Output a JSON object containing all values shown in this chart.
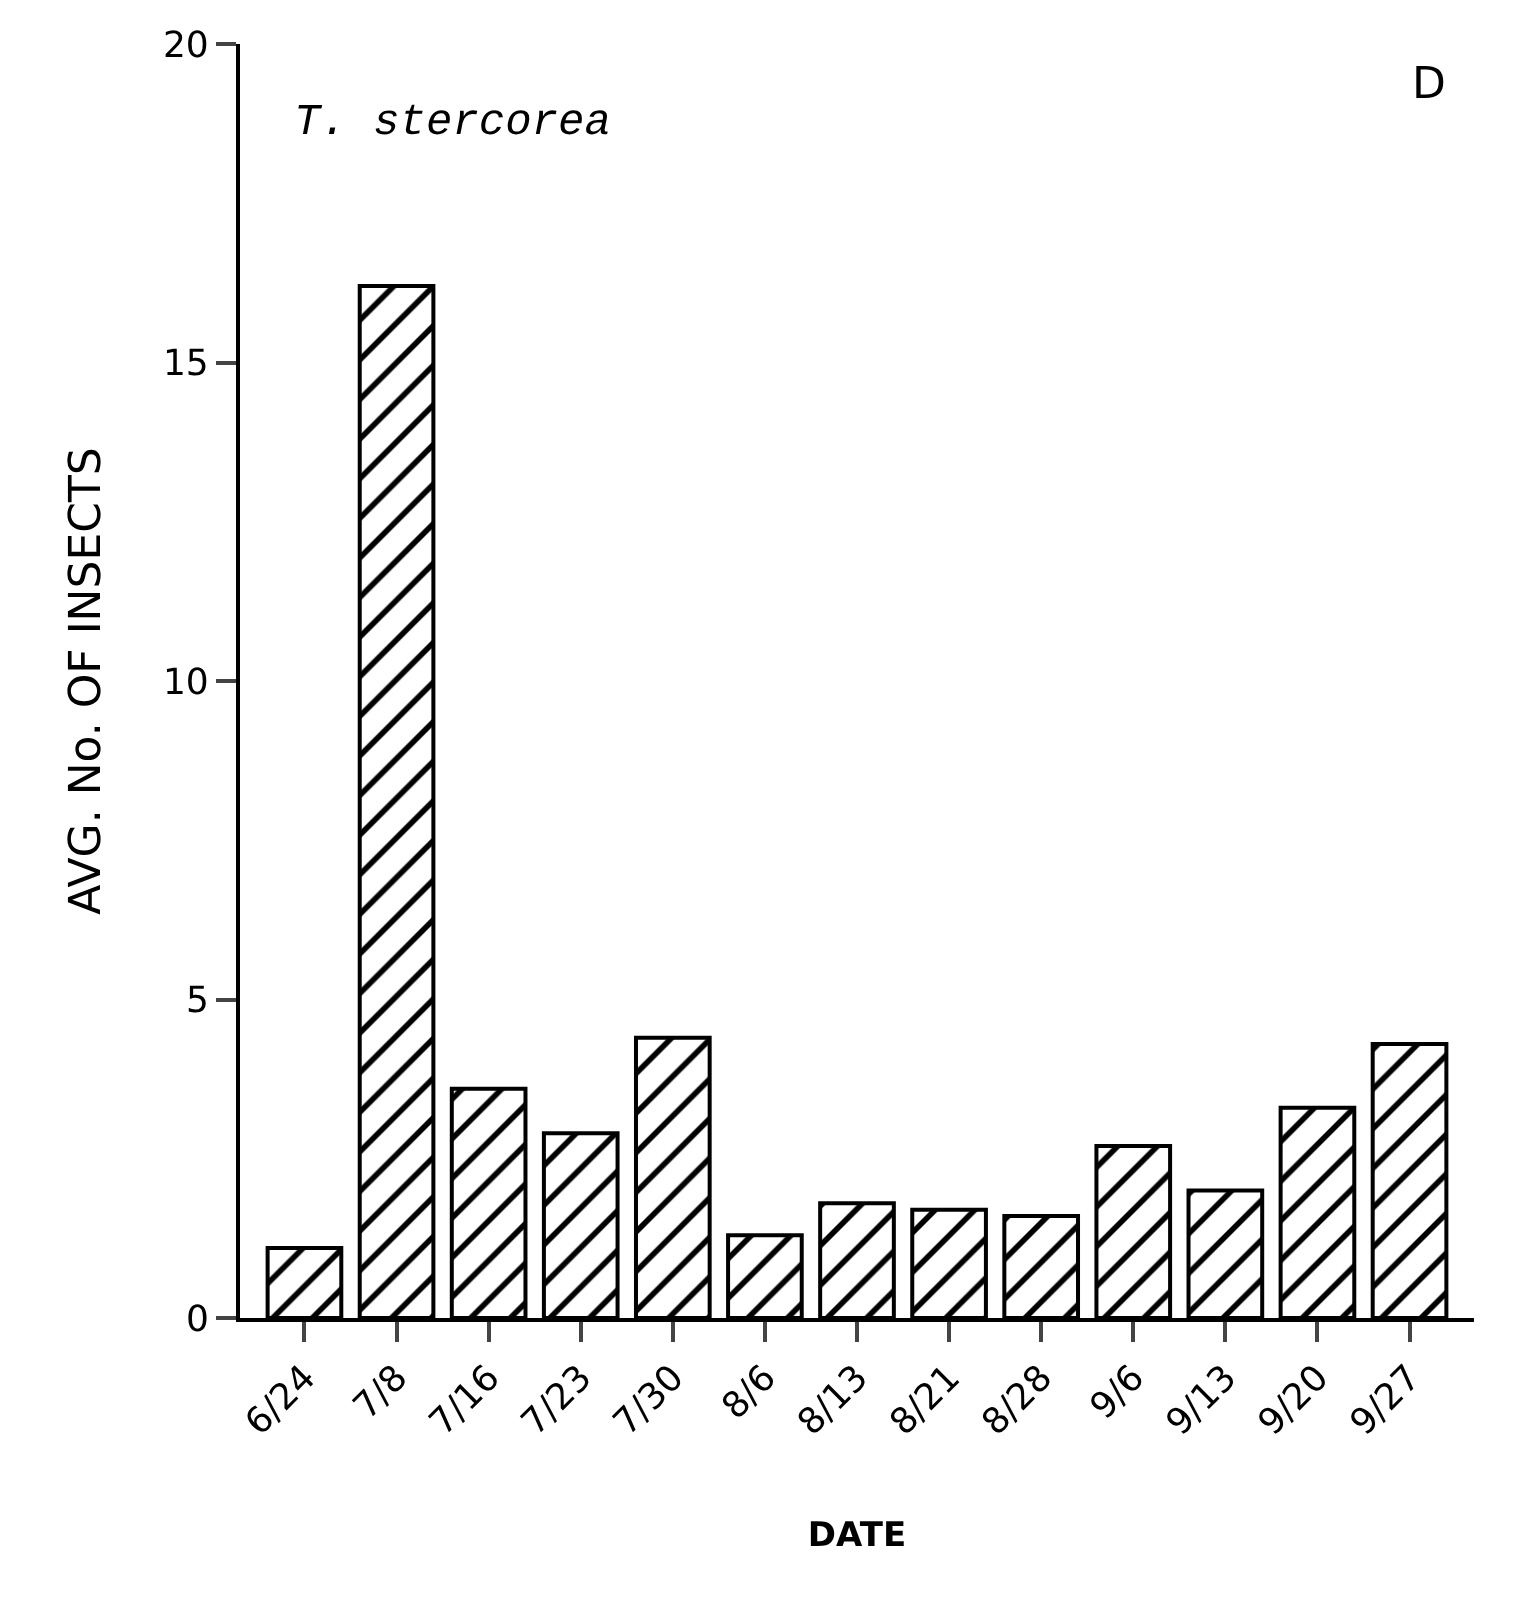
{
  "chart_data": {
    "type": "bar",
    "title": "T. stercorea",
    "xlabel": "DATE",
    "ylabel": "AVG. No. OF INSECTS",
    "annotations": [
      "D"
    ],
    "categories": [
      "6/24",
      "7/8",
      "7/16",
      "7/23",
      "7/30",
      "8/6",
      "8/13",
      "8/21",
      "8/28",
      "9/6",
      "9/13",
      "9/20",
      "9/27"
    ],
    "values": [
      1.1,
      16.2,
      3.6,
      2.9,
      4.4,
      1.3,
      1.8,
      1.7,
      1.6,
      2.7,
      2.0,
      3.3,
      4.3
    ],
    "color": "#000000",
    "ylim": [
      0,
      20
    ],
    "yticks": [
      0,
      5,
      10,
      15,
      20
    ]
  }
}
